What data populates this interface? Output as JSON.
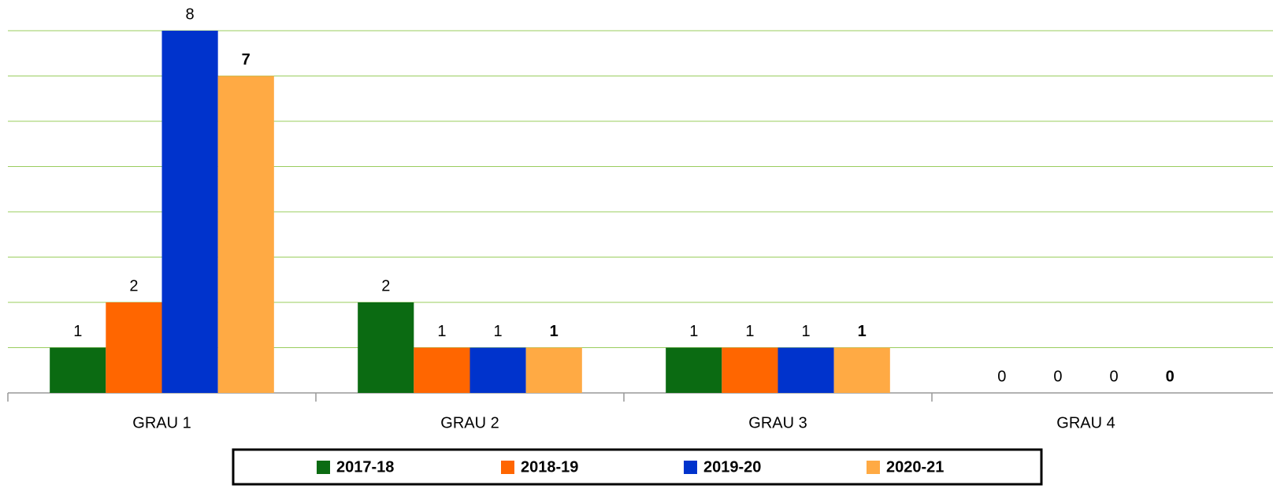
{
  "chart_data": {
    "type": "bar",
    "categories": [
      "GRAU 1",
      "GRAU 2",
      "GRAU 3",
      "GRAU 4"
    ],
    "series": [
      {
        "name": "2017-18",
        "color": "#0b6b12",
        "values": [
          1,
          2,
          1,
          0
        ]
      },
      {
        "name": "2018-19",
        "color": "#ff6600",
        "values": [
          2,
          1,
          1,
          0
        ]
      },
      {
        "name": "2019-20",
        "color": "#0033cc",
        "values": [
          8,
          1,
          1,
          0
        ]
      },
      {
        "name": "2020-21",
        "color": "#ffaa44",
        "values": [
          7,
          1,
          1,
          0
        ]
      }
    ],
    "ylim": [
      0,
      8
    ],
    "yticks": [
      0,
      1,
      2,
      3,
      4,
      5,
      6,
      7,
      8
    ],
    "grid": true,
    "legend": "bottom"
  }
}
